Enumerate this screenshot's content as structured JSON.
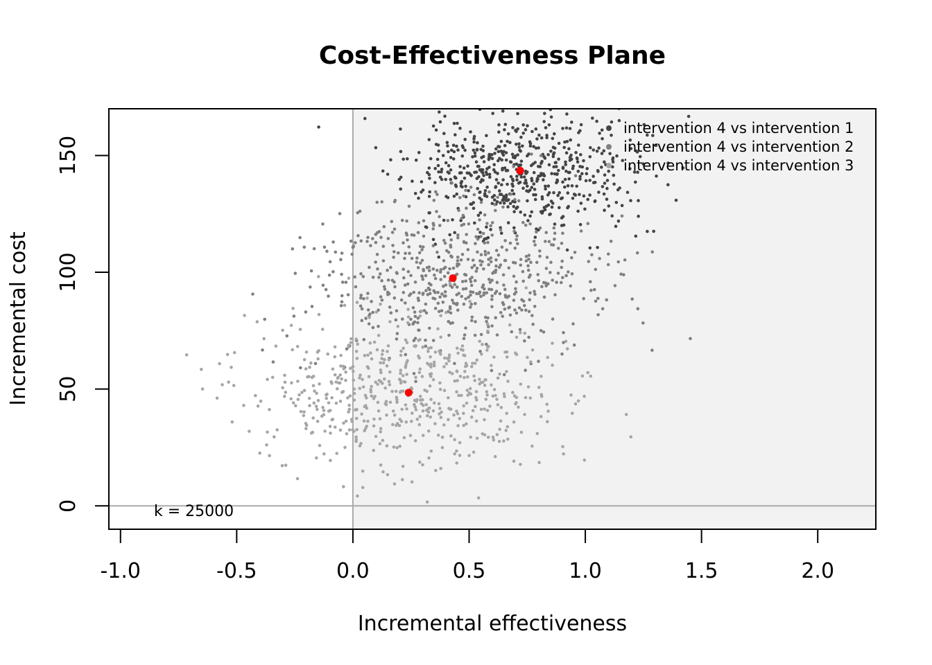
{
  "chart_data": {
    "type": "scatter",
    "title": "Cost-Effectiveness Plane",
    "xlabel": "Incremental effectiveness",
    "ylabel": "Incremental cost",
    "xlim": [
      -1.05,
      2.25
    ],
    "ylim": [
      -10,
      170
    ],
    "x_ticks": [
      -1.0,
      -0.5,
      0.0,
      0.5,
      1.0,
      1.5,
      2.0
    ],
    "x_tick_labels": [
      "-1.0",
      "-0.5",
      "0.0",
      "0.5",
      "1.0",
      "1.5",
      "2.0"
    ],
    "y_ticks": [
      0,
      50,
      100,
      150
    ],
    "y_tick_labels": [
      "0",
      "50",
      "100",
      "150"
    ],
    "grid": false,
    "legend_position": "top-right",
    "wtp_label": "k = 25000",
    "wtp_value": 25000,
    "acceptability_region_color": "#f2f2f2",
    "reference_line_color": "#aaaaaa",
    "mean_point_color": "#ff0000",
    "series": [
      {
        "name": "intervention 4 vs intervention 1",
        "color": "#444444",
        "mean": [
          0.72,
          143.5
        ],
        "sd": [
          0.25,
          13
        ],
        "n": 600,
        "seed": 11
      },
      {
        "name": "intervention 4 vs intervention 2",
        "color": "#808080",
        "mean": [
          0.43,
          97.5
        ],
        "sd": [
          0.3,
          16
        ],
        "n": 600,
        "seed": 23
      },
      {
        "name": "intervention 4 vs intervention 3",
        "color": "#a6a6a6",
        "mean": [
          0.24,
          48.5
        ],
        "sd": [
          0.33,
          16
        ],
        "n": 600,
        "seed": 37
      }
    ]
  }
}
